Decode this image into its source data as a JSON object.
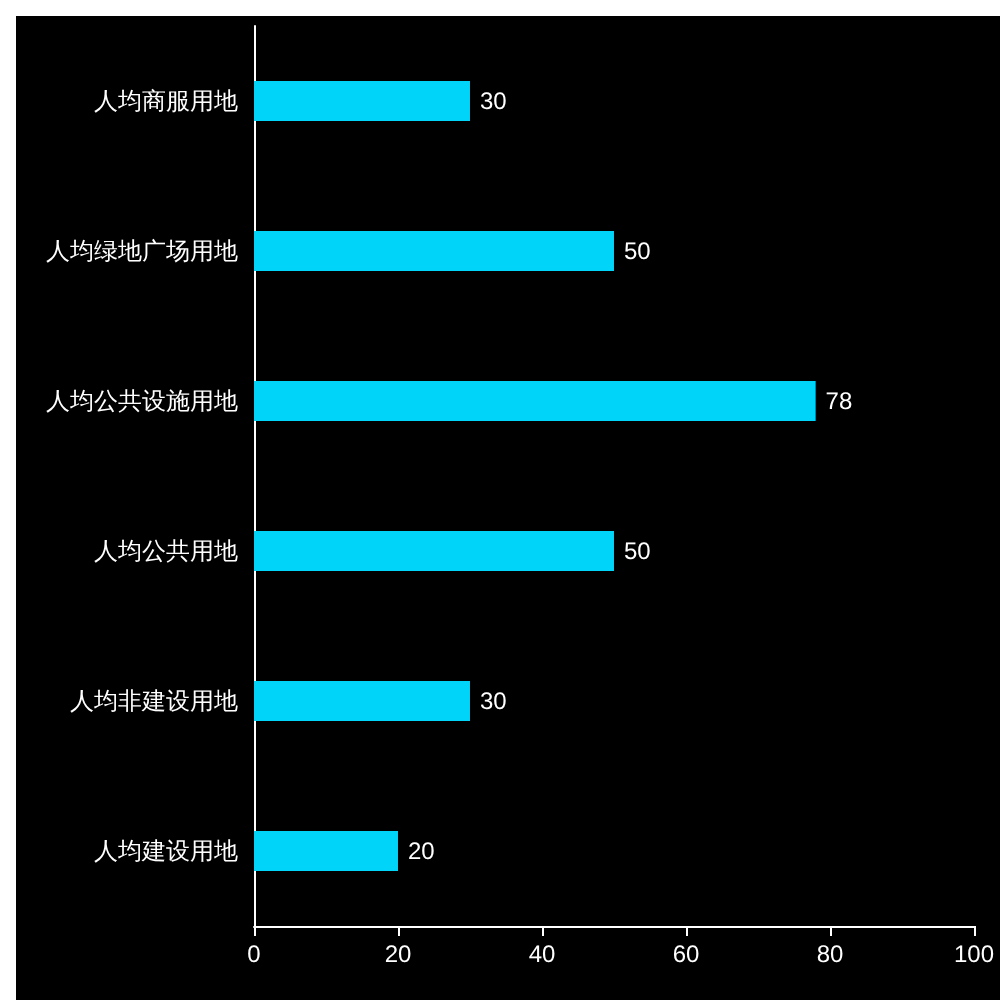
{
  "chart_data": {
    "type": "bar",
    "orientation": "horizontal",
    "categories": [
      "人均商服用地",
      "人均绿地广场用地",
      "人均公共设施用地",
      "人均公共用地",
      "人均非建设用地",
      "人均建设用地"
    ],
    "series": [
      {
        "color": "#00d4f8",
        "values": [
          30,
          50,
          78,
          50,
          30,
          20
        ]
      }
    ],
    "xlim": [
      0,
      100
    ],
    "xticks": [
      0,
      20,
      40,
      60,
      80,
      100
    ],
    "data_labels": true
  }
}
